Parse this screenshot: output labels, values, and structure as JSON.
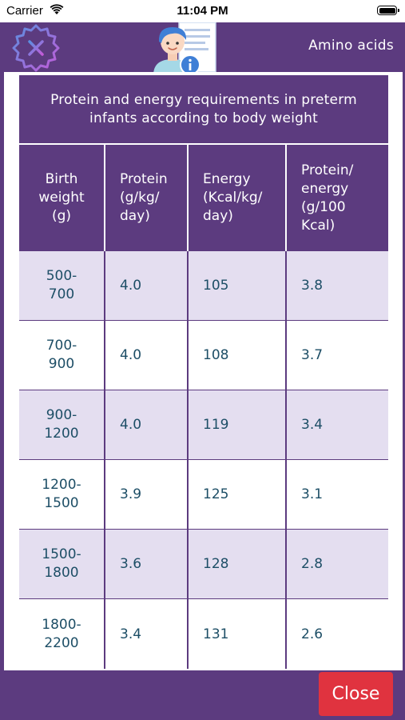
{
  "status_bar": {
    "carrier": "Carrier",
    "time": "11:04 PM",
    "icons": [
      "wifi-icon",
      "battery-icon"
    ]
  },
  "header": {
    "title": "Amino acids",
    "icons": [
      "close-x-icon",
      "doctor-info-icon"
    ]
  },
  "table": {
    "caption": "Protein and energy requirements in preterm infants according to body weight",
    "columns": [
      [
        "Birth",
        "weight",
        "(g)"
      ],
      [
        "Protein",
        "(g/kg/",
        "day)"
      ],
      [
        "Energy",
        "(Kcal/kg/",
        "day)"
      ],
      [
        "Protein/",
        "energy",
        "(g/100",
        "Kcal)"
      ]
    ],
    "rows": [
      {
        "weight": [
          "500-",
          "700"
        ],
        "protein": "4.0",
        "energy": "105",
        "ratio": "3.8"
      },
      {
        "weight": [
          "700-",
          "900"
        ],
        "protein": "4.0",
        "energy": "108",
        "ratio": "3.7"
      },
      {
        "weight": [
          "900-",
          "1200"
        ],
        "protein": "4.0",
        "energy": "119",
        "ratio": "3.4"
      },
      {
        "weight": [
          "1200-",
          "1500"
        ],
        "protein": "3.9",
        "energy": "125",
        "ratio": "3.1"
      },
      {
        "weight": [
          "1500-",
          "1800"
        ],
        "protein": "3.6",
        "energy": "128",
        "ratio": "2.8"
      },
      {
        "weight": [
          "1800-",
          "2200"
        ],
        "protein": "3.4",
        "energy": "131",
        "ratio": "2.6"
      }
    ]
  },
  "footer": {
    "close_label": "Close"
  },
  "colors": {
    "primary": "#5c3b7f",
    "row_shade": "#e4def0",
    "cell_text": "#1d4e66",
    "close_button": "#e0333f"
  }
}
